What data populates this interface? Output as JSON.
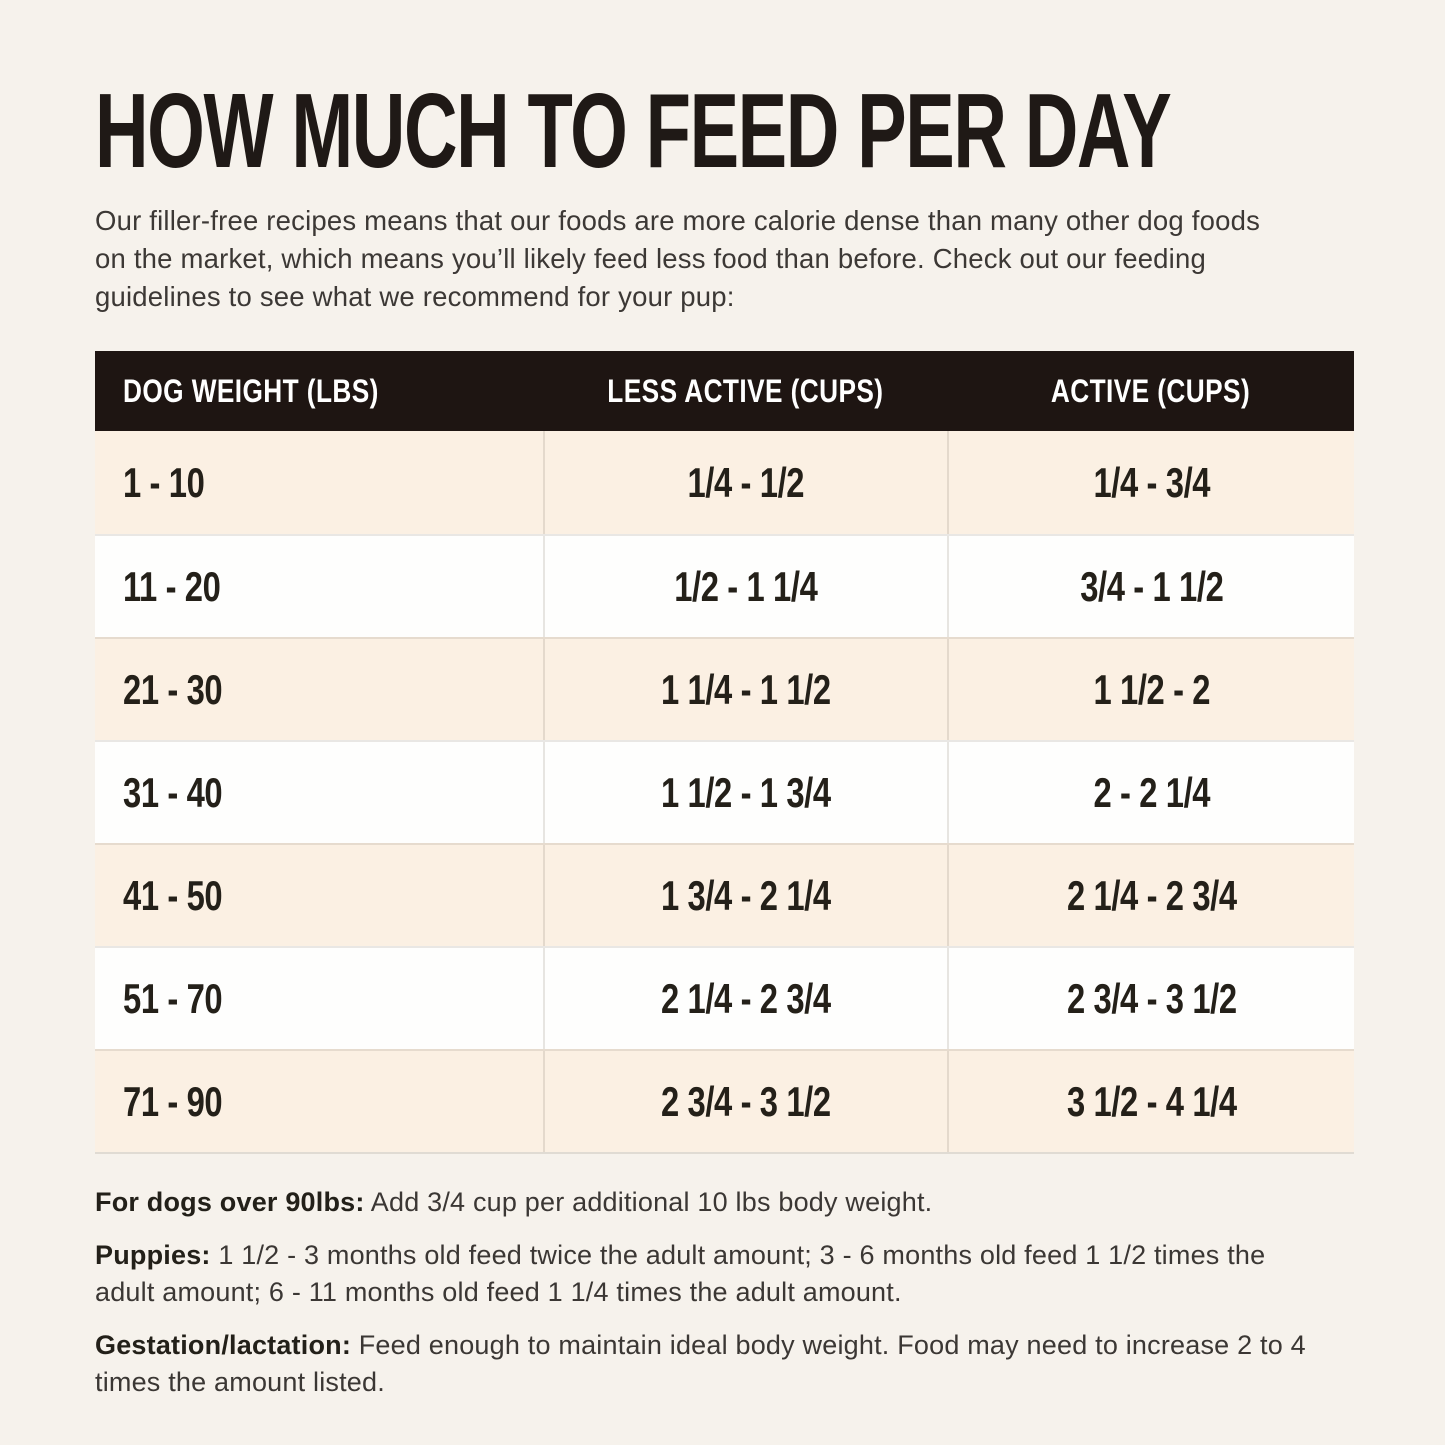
{
  "page": {
    "title": "HOW MUCH TO FEED PER DAY",
    "intro": "Our filler-free recipes means that our foods are more calorie dense than many other dog foods on the market, which means you’ll likely feed less food than before. Check out our feeding guidelines to see what we recommend for your pup:"
  },
  "table": {
    "columns": {
      "weight": "DOG WEIGHT (LBS)",
      "less_active": "LESS ACTIVE (CUPS)",
      "active": "ACTIVE (CUPS)"
    },
    "rows": [
      {
        "weight": "1 - 10",
        "less_active": "1/4 - 1/2",
        "active": "1/4 - 3/4"
      },
      {
        "weight": "11 - 20",
        "less_active": "1/2 - 1 1/4",
        "active": "3/4 - 1 1/2"
      },
      {
        "weight": "21 - 30",
        "less_active": "1 1/4 - 1 1/2",
        "active": "1 1/2 - 2"
      },
      {
        "weight": "31 - 40",
        "less_active": "1 1/2 - 1 3/4",
        "active": "2 - 2 1/4"
      },
      {
        "weight": "41 - 50",
        "less_active": "1 3/4 - 2 1/4",
        "active": "2 1/4 - 2 3/4"
      },
      {
        "weight": "51 - 70",
        "less_active": "2 1/4 - 2 3/4",
        "active": "2 3/4 - 3 1/2"
      },
      {
        "weight": "71 - 90",
        "less_active": "2 3/4 - 3 1/2",
        "active": "3 1/2 - 4 1/4"
      }
    ]
  },
  "notes": [
    {
      "label": "For dogs over 90lbs:",
      "text": "Add 3/4 cup per additional 10 lbs body weight."
    },
    {
      "label": "Puppies:",
      "text": "1 1/2 - 3 months old feed twice the adult amount; 3 - 6 months old feed 1 1/2 times the adult amount; 6 - 11 months old feed 1 1/4 times the adult amount."
    },
    {
      "label": "Gestation/lactation:",
      "text": "Feed enough to maintain ideal body weight. Food may need to increase 2 to 4 times the amount listed."
    }
  ],
  "colors": {
    "page_background": "#f6f2ec",
    "header_background": "#1e1512",
    "header_text": "#ffffff",
    "row_beige": "#fbf0e3",
    "row_white": "#fefefd",
    "text_dark": "#242019"
  }
}
